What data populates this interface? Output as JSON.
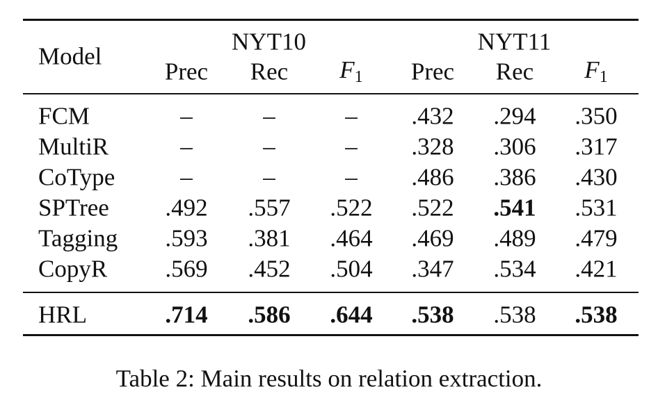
{
  "table": {
    "model_header": "Model",
    "groups": [
      {
        "label": "NYT10",
        "span": 3
      },
      {
        "label": "NYT11",
        "span": 3
      }
    ],
    "columns": [
      {
        "text": "Prec"
      },
      {
        "text": "Rec"
      },
      {
        "text": "F",
        "sub": "1",
        "italic": true
      },
      {
        "text": "Prec"
      },
      {
        "text": "Rec"
      },
      {
        "text": "F",
        "sub": "1",
        "italic": true
      }
    ],
    "rows": [
      {
        "model": "FCM",
        "cells": [
          "–",
          "–",
          "–",
          ".432",
          ".294",
          ".350"
        ],
        "bold": []
      },
      {
        "model": "MultiR",
        "cells": [
          "–",
          "–",
          "–",
          ".328",
          ".306",
          ".317"
        ],
        "bold": []
      },
      {
        "model": "CoType",
        "cells": [
          "–",
          "–",
          "–",
          ".486",
          ".386",
          ".430"
        ],
        "bold": []
      },
      {
        "model": "SPTree",
        "cells": [
          ".492",
          ".557",
          ".522",
          ".522",
          ".541",
          ".531"
        ],
        "bold": [
          4
        ]
      },
      {
        "model": "Tagging",
        "cells": [
          ".593",
          ".381",
          ".464",
          ".469",
          ".489",
          ".479"
        ],
        "bold": []
      },
      {
        "model": "CopyR",
        "cells": [
          ".569",
          ".452",
          ".504",
          ".347",
          ".534",
          ".421"
        ],
        "bold": []
      }
    ],
    "final_row": {
      "model": "HRL",
      "cells": [
        ".714",
        ".586",
        ".644",
        ".538",
        ".538",
        ".538"
      ],
      "bold": [
        0,
        1,
        2,
        3,
        5
      ]
    },
    "caption": "Table 2: Main results on relation extraction."
  }
}
